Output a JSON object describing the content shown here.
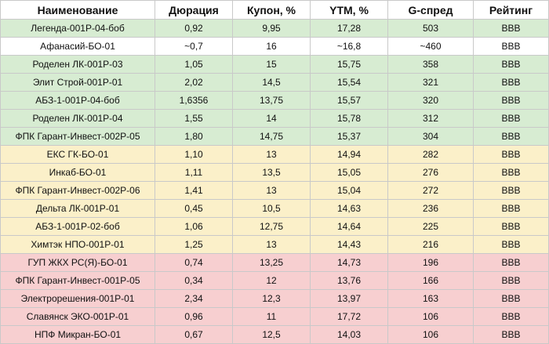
{
  "colors": {
    "green_row": "#d7ecd2",
    "yellow_row": "#fbf0c9",
    "red_row": "#f7cfd0",
    "highlight_border": "#e0262b",
    "grid": "#c9c9c9"
  },
  "table": {
    "headers": [
      "Наименование",
      "Дюрация",
      "Купон, %",
      "YTM, %",
      "G-спред",
      "Рейтинг"
    ],
    "rows": [
      {
        "group": "green",
        "cells": [
          "Легенда-001Р-04-боб",
          "0,92",
          "9,95",
          "17,28",
          "503",
          "BBB"
        ]
      },
      {
        "group": "highlight",
        "cells": [
          "Афанасий-БО-01",
          "~0,7",
          "16",
          "~16,8",
          "~460",
          "BBB"
        ]
      },
      {
        "group": "green",
        "cells": [
          "Роделен ЛК-001Р-03",
          "1,05",
          "15",
          "15,75",
          "358",
          "BBB"
        ]
      },
      {
        "group": "green",
        "cells": [
          "Элит Строй-001Р-01",
          "2,02",
          "14,5",
          "15,54",
          "321",
          "BBB"
        ]
      },
      {
        "group": "green",
        "cells": [
          "АБЗ-1-001Р-04-боб",
          "1,6356",
          "13,75",
          "15,57",
          "320",
          "BBB"
        ]
      },
      {
        "group": "green",
        "cells": [
          "Роделен ЛК-001Р-04",
          "1,55",
          "14",
          "15,78",
          "312",
          "BBB"
        ]
      },
      {
        "group": "green",
        "cells": [
          "ФПК Гарант-Инвест-002Р-05",
          "1,80",
          "14,75",
          "15,37",
          "304",
          "BBB"
        ]
      },
      {
        "group": "yellow",
        "cells": [
          "ЕКС ГК-БО-01",
          "1,10",
          "13",
          "14,94",
          "282",
          "BBB"
        ]
      },
      {
        "group": "yellow",
        "cells": [
          "Инкаб-БО-01",
          "1,11",
          "13,5",
          "15,05",
          "276",
          "BBB"
        ]
      },
      {
        "group": "yellow",
        "cells": [
          "ФПК Гарант-Инвест-002Р-06",
          "1,41",
          "13",
          "15,04",
          "272",
          "BBB"
        ]
      },
      {
        "group": "yellow",
        "cells": [
          "Дельта ЛК-001Р-01",
          "0,45",
          "10,5",
          "14,63",
          "236",
          "BBB"
        ]
      },
      {
        "group": "yellow",
        "cells": [
          "АБЗ-1-001Р-02-боб",
          "1,06",
          "12,75",
          "14,64",
          "225",
          "BBB"
        ]
      },
      {
        "group": "yellow",
        "cells": [
          "Химтэк НПО-001Р-01",
          "1,25",
          "13",
          "14,43",
          "216",
          "BBB"
        ]
      },
      {
        "group": "red",
        "cells": [
          "ГУП ЖКХ РС(Я)-БО-01",
          "0,74",
          "13,25",
          "14,73",
          "196",
          "BBB"
        ]
      },
      {
        "group": "red",
        "cells": [
          "ФПК Гарант-Инвест-001Р-05",
          "0,34",
          "12",
          "13,76",
          "166",
          "BBB"
        ]
      },
      {
        "group": "red",
        "cells": [
          "Электрорешения-001Р-01",
          "2,34",
          "12,3",
          "13,97",
          "163",
          "BBB"
        ]
      },
      {
        "group": "red",
        "cells": [
          "Славянск ЭКО-001Р-01",
          "0,96",
          "11",
          "17,72",
          "106",
          "BBB"
        ]
      },
      {
        "group": "red",
        "cells": [
          "НПФ Микран-БО-01",
          "0,67",
          "12,5",
          "14,03",
          "106",
          "BBB"
        ]
      }
    ]
  }
}
